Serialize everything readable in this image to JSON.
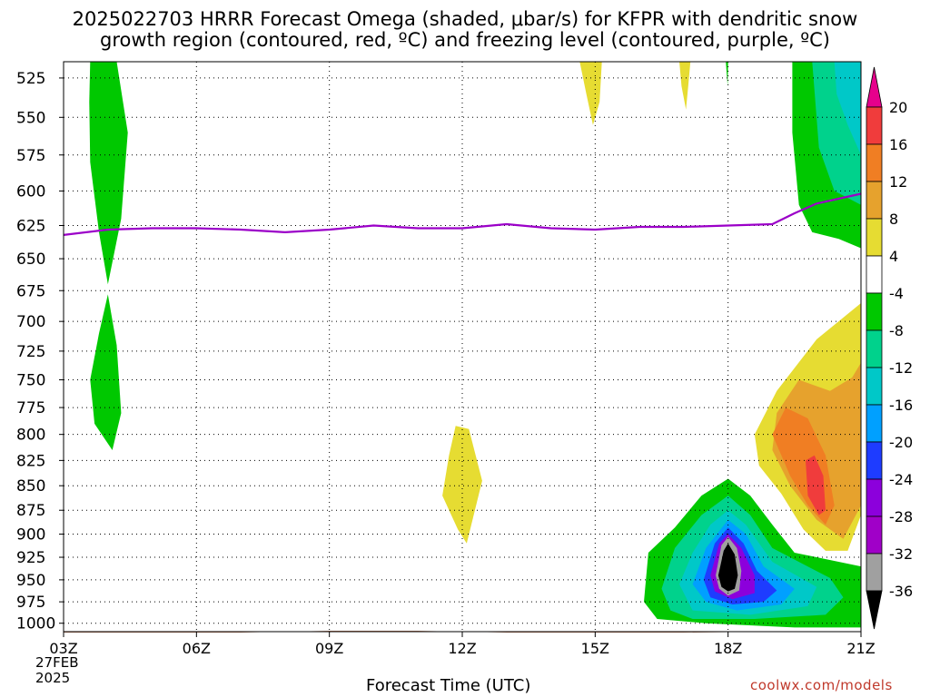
{
  "title": {
    "line1": "2025022703 HRRR Forecast Omega (shaded, μbar/s) for KFPR with dendritic snow",
    "line2": "growth region (contoured, red, ºC) and freezing level (contoured, purple, ºC)"
  },
  "credit": "coolwx.com/models",
  "chart_data": {
    "type": "contour",
    "title": "2025022703 HRRR Forecast Omega (shaded, μbar/s) for KFPR with dendritic snow growth region (contoured, red, ºC) and freezing level (contoured, purple, ºC)",
    "xlabel": "Forecast Time (UTC)",
    "ylabel": "",
    "x_ticks": [
      "03Z",
      "06Z",
      "09Z",
      "12Z",
      "15Z",
      "18Z",
      "21Z"
    ],
    "x_tick_hours": [
      3,
      6,
      9,
      12,
      15,
      18,
      21
    ],
    "x_first_sub": [
      "27FEB",
      "2025"
    ],
    "xlim_hours": [
      3,
      21
    ],
    "y_ticks": [
      525,
      550,
      575,
      600,
      625,
      650,
      675,
      700,
      725,
      750,
      775,
      800,
      825,
      850,
      875,
      900,
      925,
      950,
      975,
      1000
    ],
    "ylim_hPa": [
      515,
      1010
    ],
    "y_scale": "log-pressure, inverted",
    "grid": true,
    "colorbar": {
      "units": "μbar/s",
      "labels": [
        "20",
        "16",
        "12",
        "8",
        "4",
        "-4",
        "-8",
        "-12",
        "-16",
        "-20",
        "-24",
        "-28",
        "-32",
        "-36"
      ],
      "bins": [
        {
          "from": 20,
          "to": null,
          "color": "#e6008c"
        },
        {
          "from": 16,
          "to": 20,
          "color": "#f03c3c"
        },
        {
          "from": 12,
          "to": 16,
          "color": "#f07e23"
        },
        {
          "from": 8,
          "to": 12,
          "color": "#e6a22d"
        },
        {
          "from": 4,
          "to": 8,
          "color": "#e6dc32"
        },
        {
          "from": -4,
          "to": 4,
          "color": "#ffffff"
        },
        {
          "from": -8,
          "to": -4,
          "color": "#00c800"
        },
        {
          "from": -12,
          "to": -8,
          "color": "#00d28c"
        },
        {
          "from": -16,
          "to": -12,
          "color": "#00c8c8"
        },
        {
          "from": -20,
          "to": -16,
          "color": "#00a0ff"
        },
        {
          "from": -24,
          "to": -20,
          "color": "#1e3cff"
        },
        {
          "from": -28,
          "to": -24,
          "color": "#8c00dc"
        },
        {
          "from": -32,
          "to": -28,
          "color": "#a000c8"
        },
        {
          "from": -36,
          "to": -32,
          "color": "#a0a0a0"
        },
        {
          "from": null,
          "to": -36,
          "color": "#000000"
        }
      ]
    },
    "freezing_level": {
      "color": "#9b00c8",
      "points": [
        [
          3.0,
          632
        ],
        [
          4.0,
          628
        ],
        [
          5.0,
          627
        ],
        [
          6.0,
          627
        ],
        [
          7.0,
          628
        ],
        [
          8.0,
          630
        ],
        [
          9.0,
          628
        ],
        [
          10.0,
          625
        ],
        [
          11.0,
          627
        ],
        [
          12.0,
          627
        ],
        [
          13.0,
          624
        ],
        [
          14.0,
          627
        ],
        [
          15.0,
          628
        ],
        [
          16.0,
          626
        ],
        [
          17.0,
          626
        ],
        [
          18.0,
          625
        ],
        [
          19.0,
          624
        ],
        [
          19.5,
          616
        ],
        [
          20.0,
          609
        ],
        [
          21.0,
          602
        ]
      ]
    },
    "ground": {
      "color": "#a0522d",
      "points": [
        [
          3.0,
          1011
        ],
        [
          7.0,
          1011
        ],
        [
          9.0,
          1009
        ],
        [
          11.0,
          1009
        ],
        [
          13.0,
          1011
        ],
        [
          17.0,
          1011
        ],
        [
          19.0,
          1010
        ],
        [
          21.0,
          1010
        ]
      ]
    },
    "omega_regions": [
      {
        "color": "#00c800",
        "points": [
          [
            3.6,
            515
          ],
          [
            4.2,
            515
          ],
          [
            4.45,
            560
          ],
          [
            4.3,
            620
          ],
          [
            4.0,
            670
          ],
          [
            3.8,
            630
          ],
          [
            3.6,
            580
          ],
          [
            3.58,
            540
          ]
        ]
      },
      {
        "color": "#00c800",
        "points": [
          [
            4.0,
            678
          ],
          [
            4.2,
            720
          ],
          [
            4.3,
            780
          ],
          [
            4.1,
            815
          ],
          [
            3.7,
            790
          ],
          [
            3.6,
            750
          ],
          [
            3.8,
            710
          ]
        ]
      },
      {
        "color": "#e6dc32",
        "points": [
          [
            11.7,
            820
          ],
          [
            11.85,
            792
          ],
          [
            12.15,
            795
          ],
          [
            12.45,
            845
          ],
          [
            12.1,
            910
          ],
          [
            11.9,
            895
          ],
          [
            11.55,
            860
          ]
        ]
      },
      {
        "color": "#e6dc32",
        "points": [
          [
            14.65,
            515
          ],
          [
            15.15,
            515
          ],
          [
            15.1,
            540
          ],
          [
            14.95,
            555
          ],
          [
            14.8,
            535
          ]
        ]
      },
      {
        "color": "#e6dc32",
        "points": [
          [
            16.9,
            515
          ],
          [
            17.15,
            515
          ],
          [
            17.1,
            530
          ],
          [
            17.05,
            545
          ],
          [
            16.95,
            530
          ]
        ]
      },
      {
        "color": "#00c800",
        "points": [
          [
            17.95,
            515
          ],
          [
            18.0,
            515
          ],
          [
            17.99,
            530
          ]
        ]
      },
      {
        "color": "#00c800",
        "points": [
          [
            19.45,
            515
          ],
          [
            21.0,
            515
          ],
          [
            21.0,
            642
          ],
          [
            20.5,
            635
          ],
          [
            19.9,
            630
          ],
          [
            19.6,
            610
          ],
          [
            19.45,
            560
          ]
        ]
      },
      {
        "color": "#00d28c",
        "points": [
          [
            19.9,
            515
          ],
          [
            21.0,
            515
          ],
          [
            21.0,
            610
          ],
          [
            20.4,
            600
          ],
          [
            20.05,
            570
          ]
        ]
      },
      {
        "color": "#00c8c8",
        "points": [
          [
            20.4,
            515
          ],
          [
            21.0,
            515
          ],
          [
            21.0,
            575
          ],
          [
            20.7,
            555
          ],
          [
            20.45,
            535
          ]
        ]
      },
      {
        "color": "#e6dc32",
        "points": [
          [
            18.6,
            800
          ],
          [
            19.1,
            760
          ],
          [
            20.0,
            715
          ],
          [
            21.0,
            685
          ],
          [
            21.0,
            880
          ],
          [
            20.7,
            918
          ],
          [
            20.2,
            918
          ],
          [
            19.7,
            895
          ],
          [
            19.2,
            858
          ],
          [
            18.7,
            830
          ]
        ]
      },
      {
        "color": "#e6a22d",
        "points": [
          [
            19.6,
            750
          ],
          [
            20.3,
            760
          ],
          [
            20.8,
            748
          ],
          [
            21.0,
            735
          ],
          [
            21.0,
            870
          ],
          [
            20.6,
            905
          ],
          [
            20.0,
            885
          ],
          [
            19.4,
            850
          ],
          [
            19.0,
            815
          ],
          [
            19.1,
            780
          ]
        ]
      },
      {
        "color": "#f07e23",
        "points": [
          [
            19.0,
            800
          ],
          [
            19.3,
            775
          ],
          [
            19.8,
            785
          ],
          [
            20.2,
            820
          ],
          [
            20.4,
            870
          ],
          [
            20.2,
            890
          ],
          [
            19.8,
            870
          ],
          [
            19.4,
            840
          ]
        ]
      },
      {
        "color": "#f03c3c",
        "points": [
          [
            19.75,
            825
          ],
          [
            19.95,
            820
          ],
          [
            20.15,
            840
          ],
          [
            20.2,
            875
          ],
          [
            20.05,
            880
          ],
          [
            19.8,
            860
          ]
        ]
      },
      {
        "color": "#00c800",
        "points": [
          [
            16.1,
            975
          ],
          [
            16.2,
            920
          ],
          [
            16.8,
            893
          ],
          [
            17.4,
            860
          ],
          [
            18.0,
            843
          ],
          [
            18.5,
            860
          ],
          [
            19.0,
            890
          ],
          [
            19.5,
            920
          ],
          [
            21.0,
            935
          ],
          [
            21.0,
            1005
          ],
          [
            19.5,
            1005
          ],
          [
            17.5,
            1000
          ],
          [
            16.4,
            995
          ]
        ]
      },
      {
        "color": "#00d28c",
        "points": [
          [
            16.5,
            960
          ],
          [
            16.8,
            915
          ],
          [
            17.4,
            880
          ],
          [
            18.0,
            860
          ],
          [
            18.5,
            880
          ],
          [
            19.0,
            915
          ],
          [
            20.3,
            948
          ],
          [
            20.6,
            970
          ],
          [
            20.2,
            990
          ],
          [
            18.6,
            995
          ],
          [
            17.2,
            995
          ],
          [
            16.7,
            985
          ]
        ]
      },
      {
        "color": "#00c8c8",
        "points": [
          [
            16.9,
            955
          ],
          [
            17.2,
            920
          ],
          [
            17.6,
            890
          ],
          [
            18.0,
            875
          ],
          [
            18.4,
            890
          ],
          [
            19.0,
            930
          ],
          [
            20.0,
            958
          ],
          [
            19.8,
            980
          ],
          [
            18.5,
            990
          ],
          [
            17.2,
            985
          ]
        ]
      },
      {
        "color": "#00a0ff",
        "points": [
          [
            17.2,
            955
          ],
          [
            17.5,
            915
          ],
          [
            18.0,
            885
          ],
          [
            18.4,
            900
          ],
          [
            18.8,
            935
          ],
          [
            19.5,
            960
          ],
          [
            19.2,
            978
          ],
          [
            18.2,
            985
          ],
          [
            17.5,
            975
          ]
        ]
      },
      {
        "color": "#1e3cff",
        "points": [
          [
            17.45,
            950
          ],
          [
            17.7,
            910
          ],
          [
            18.0,
            893
          ],
          [
            18.35,
            910
          ],
          [
            18.65,
            940
          ],
          [
            19.1,
            962
          ],
          [
            18.8,
            975
          ],
          [
            18.1,
            978
          ],
          [
            17.6,
            970
          ]
        ]
      },
      {
        "color": "#8c00dc",
        "points": [
          [
            17.6,
            945
          ],
          [
            17.8,
            910
          ],
          [
            18.0,
            900
          ],
          [
            18.3,
            915
          ],
          [
            18.6,
            945
          ],
          [
            18.6,
            965
          ],
          [
            18.1,
            972
          ],
          [
            17.7,
            963
          ]
        ]
      },
      {
        "color": "#a0a0a0",
        "points": [
          [
            17.72,
            945
          ],
          [
            17.85,
            912
          ],
          [
            18.0,
            903
          ],
          [
            18.2,
            915
          ],
          [
            18.3,
            940
          ],
          [
            18.25,
            962
          ],
          [
            18.0,
            968
          ],
          [
            17.8,
            960
          ]
        ]
      },
      {
        "color": "#000000",
        "points": [
          [
            17.78,
            945
          ],
          [
            17.9,
            918
          ],
          [
            18.0,
            910
          ],
          [
            18.15,
            922
          ],
          [
            18.22,
            945
          ],
          [
            18.15,
            960
          ],
          [
            18.0,
            963
          ],
          [
            17.85,
            958
          ]
        ]
      }
    ]
  }
}
